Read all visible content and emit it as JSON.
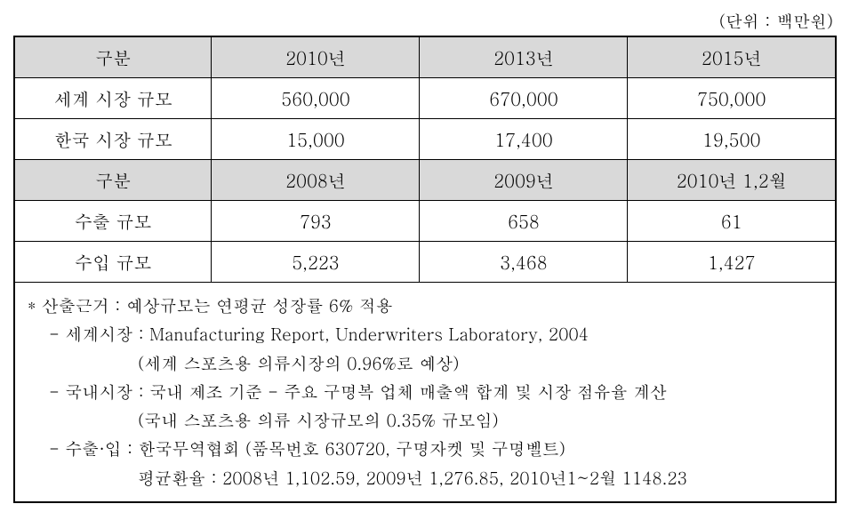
{
  "unit_label": "(단위 : 백만원)",
  "table1": {
    "header": {
      "label": "구분",
      "col1": "2010년",
      "col2": "2013년",
      "col3": "2015년"
    },
    "rows": [
      {
        "label": "세계 시장 규모",
        "col1": "560,000",
        "col2": "670,000",
        "col3": "750,000"
      },
      {
        "label": "한국 시장 규모",
        "col1": "15,000",
        "col2": "17,400",
        "col3": "19,500"
      }
    ]
  },
  "table2": {
    "header": {
      "label": "구분",
      "col1": "2008년",
      "col2": "2009년",
      "col3": "2010년 1,2월"
    },
    "rows": [
      {
        "label": "수출 규모",
        "col1": "793",
        "col2": "658",
        "col3": "61"
      },
      {
        "label": "수입 규모",
        "col1": "5,223",
        "col2": "3,468",
        "col3": "1,427"
      }
    ]
  },
  "footnote": {
    "line1": "* 산출근거 :  예상규모는 연평균 성장률 6% 적용",
    "line2": "- 세계시장 : Manufacturing Report, Underwriters Laboratory, 2004",
    "line3": "(세계 스포츠용 의류시장의 0.96%로 예상)",
    "line4": "- 국내시장 : 국내 제조 기준 - 주요 구명복 업체 매출액 합계 및 시장 점유율 계산",
    "line5": "(국내 스포츠용 의류 시장규모의 0.35% 규모임)",
    "line6": "- 수출·입 : 한국무역협회 (품목번호 630720, 구명자켓 및 구명벨트)",
    "line7": "평균환율 :  2008년 1,102.59, 2009년 1,276.85, 2010년1~2월 1148.23"
  },
  "styles": {
    "header_bg": "#d9d9d9",
    "border_color": "#000000",
    "background_color": "#ffffff",
    "font_family": "Batang, 바탕, serif",
    "cell_fontsize": 20,
    "footnote_fontsize": 19,
    "unit_fontsize": 19
  }
}
